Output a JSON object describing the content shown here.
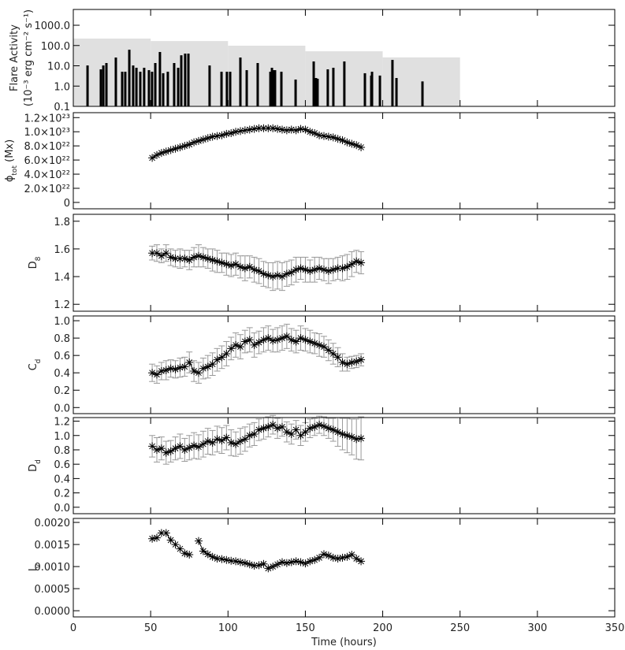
{
  "chart_data": [
    {
      "type": "flare",
      "log_y": true,
      "ylabel": [
        [
          {
            "text": "Flare Activity"
          }
        ],
        [
          {
            "text": "(10⁻³ erg cm⁻² s⁻¹)"
          }
        ]
      ],
      "xlim": [
        0,
        350
      ],
      "xticks": [
        0,
        50,
        100,
        150,
        200,
        250,
        300,
        350
      ],
      "ylim": [
        0.1,
        6000
      ],
      "yticks": [
        0.1,
        {
          "value": 1,
          "label": "1.0"
        },
        {
          "value": 10,
          "label": "10.0"
        },
        {
          "value": 100,
          "label": "100.0"
        },
        {
          "value": 1000,
          "label": "1000.0"
        }
      ],
      "background": {
        "bins": [
          0,
          50,
          100,
          150,
          200,
          250
        ],
        "values": [
          220,
          166,
          98,
          52,
          26
        ],
        "color": "#e0e0e0"
      },
      "color": "#000000",
      "x": [
        9.2,
        17.8,
        19.4,
        21.4,
        27.5,
        31.6,
        33.6,
        36.2,
        38.7,
        40.8,
        43.3,
        45.8,
        48.9,
        50.9,
        53,
        56,
        58.1,
        61.1,
        65.2,
        67.8,
        69.8,
        72.3,
        74.4,
        88.1,
        95.8,
        99.3,
        101.4,
        108,
        112.1,
        119.2,
        127.4,
        128.4,
        129.4,
        130.4,
        134.5,
        143.7,
        155.4,
        156.9,
        157.9,
        164.5,
        168.1,
        175.2,
        188.5,
        192.6,
        193.1,
        198.2,
        206.3,
        208.9,
        225.7
      ],
      "values": [
        10.4,
        6.7,
        10.4,
        13.7,
        25.6,
        5.1,
        5.1,
        62,
        10.4,
        8.0,
        5.1,
        8.0,
        6.1,
        5.1,
        13.7,
        48,
        4.3,
        5.1,
        13.7,
        8.0,
        33,
        40,
        40,
        10.4,
        5.1,
        5.1,
        5.1,
        25.6,
        6.1,
        13.7,
        5.1,
        8.0,
        6.1,
        6.1,
        5.1,
        2.1,
        16.4,
        2.5,
        2.3,
        6.7,
        8.0,
        16.4,
        4.3,
        3.3,
        5.1,
        3.3,
        19.5,
        2.5,
        1.7
      ]
    },
    {
      "type": "scatter-line",
      "ylabel": [
        [
          {
            "text": "ϕ"
          },
          {
            "text": "tot",
            "sub": true
          },
          {
            "text": " (Mx)"
          }
        ]
      ],
      "xlim": [
        0,
        350
      ],
      "xticks": [
        0,
        50,
        100,
        150,
        200,
        250,
        300,
        350
      ],
      "ylim": [
        -9e+21,
        1.27e+23
      ],
      "yticks": [
        0,
        {
          "value": 2e+22,
          "label": "2.0×10²²"
        },
        {
          "value": 4e+22,
          "label": "4.0×10²²"
        },
        {
          "value": 6e+22,
          "label": "6.0×10²²"
        },
        {
          "value": 8e+22,
          "label": "8.0×10²²"
        },
        {
          "value": 1e+23,
          "label": "1.0×10²³"
        },
        {
          "value": 1.2e+23,
          "label": "1.2×10²³"
        }
      ],
      "x": [
        51,
        54,
        57,
        60,
        63,
        66,
        69,
        72,
        75,
        78,
        81,
        84,
        87,
        90,
        93,
        96,
        99,
        102,
        105,
        108,
        111,
        114,
        117,
        120,
        123,
        126,
        129,
        132,
        135,
        138,
        141,
        144,
        147,
        150,
        153,
        156,
        159,
        162,
        165,
        168,
        171,
        174,
        177,
        180,
        183,
        186
      ],
      "series": [
        {
          "color": "#000000",
          "values": [
            6.3e+22,
            6.7e+22,
            7e+22,
            7.2e+22,
            7.4e+22,
            7.6e+22,
            7.8e+22,
            8e+22,
            8.2e+22,
            8.5e+22,
            8.7e+22,
            8.9e+22,
            9.1e+22,
            9.3e+22,
            9.4e+22,
            9.5e+22,
            9.7e+22,
            9.8e+22,
            1e+23,
            1.01e+23,
            1.02e+23,
            1.03e+23,
            1.04e+23,
            1.05e+23,
            1.05e+23,
            1.05e+23,
            1.05e+23,
            1.04e+23,
            1.03e+23,
            1.02e+23,
            1.03e+23,
            1.02e+23,
            1.04e+23,
            1.03e+23,
            1e+23,
            9.8e+22,
            9.5e+22,
            9.4e+22,
            9.3e+22,
            9.2e+22,
            9e+22,
            8.8e+22,
            8.5e+22,
            8.3e+22,
            8.1e+22,
            7.8e+22
          ]
        }
      ]
    },
    {
      "type": "scatter-line",
      "ylabel": [
        [
          {
            "text": "D"
          },
          {
            "text": "8",
            "sub": true
          }
        ]
      ],
      "xlim": [
        0,
        350
      ],
      "xticks": [
        0,
        50,
        100,
        150,
        200,
        250,
        300,
        350
      ],
      "ylim": [
        1.15,
        1.85
      ],
      "yticks": [
        1.2,
        1.4,
        1.6,
        1.8
      ],
      "x": [
        51,
        54,
        57,
        60,
        63,
        66,
        69,
        72,
        75,
        78,
        81,
        84,
        87,
        90,
        93,
        96,
        99,
        102,
        105,
        108,
        111,
        114,
        117,
        120,
        123,
        126,
        129,
        132,
        135,
        138,
        141,
        144,
        147,
        150,
        153,
        156,
        159,
        162,
        165,
        168,
        171,
        174,
        177,
        180,
        183,
        186
      ],
      "series": [
        {
          "color": "#000000",
          "error_color": "#999999",
          "values": [
            1.57,
            1.57,
            1.55,
            1.57,
            1.54,
            1.53,
            1.53,
            1.53,
            1.52,
            1.54,
            1.55,
            1.54,
            1.53,
            1.52,
            1.51,
            1.5,
            1.49,
            1.48,
            1.49,
            1.47,
            1.46,
            1.47,
            1.45,
            1.44,
            1.42,
            1.41,
            1.4,
            1.41,
            1.4,
            1.42,
            1.43,
            1.45,
            1.46,
            1.45,
            1.44,
            1.45,
            1.46,
            1.45,
            1.44,
            1.45,
            1.46,
            1.46,
            1.47,
            1.49,
            1.51,
            1.5
          ],
          "errors": [
            0.05,
            0.06,
            0.05,
            0.06,
            0.06,
            0.06,
            0.07,
            0.06,
            0.07,
            0.07,
            0.08,
            0.07,
            0.07,
            0.08,
            0.08,
            0.07,
            0.08,
            0.08,
            0.08,
            0.08,
            0.09,
            0.08,
            0.09,
            0.09,
            0.09,
            0.09,
            0.1,
            0.1,
            0.1,
            0.09,
            0.09,
            0.09,
            0.08,
            0.09,
            0.08,
            0.09,
            0.08,
            0.08,
            0.09,
            0.08,
            0.08,
            0.09,
            0.09,
            0.09,
            0.08,
            0.08
          ]
        }
      ]
    },
    {
      "type": "scatter-line",
      "ylabel": [
        [
          {
            "text": "C"
          },
          {
            "text": "d",
            "sub": true
          }
        ]
      ],
      "xlim": [
        0,
        350
      ],
      "xticks": [
        0,
        50,
        100,
        150,
        200,
        250,
        300,
        350
      ],
      "ylim": [
        -0.07,
        1.055
      ],
      "yticks": [
        {
          "value": 0,
          "label": "0.0"
        },
        0.2,
        0.4,
        0.6,
        0.8,
        {
          "value": 1,
          "label": "1.0"
        }
      ],
      "x": [
        51,
        54,
        57,
        60,
        63,
        66,
        69,
        72,
        75,
        78,
        81,
        84,
        87,
        90,
        93,
        96,
        99,
        102,
        105,
        108,
        111,
        114,
        117,
        120,
        123,
        126,
        129,
        132,
        135,
        138,
        141,
        144,
        147,
        150,
        153,
        156,
        159,
        162,
        165,
        168,
        171,
        174,
        177,
        180,
        183,
        186
      ],
      "series": [
        {
          "color": "#000000",
          "error_color": "#999999",
          "values": [
            0.4,
            0.38,
            0.42,
            0.43,
            0.45,
            0.44,
            0.46,
            0.47,
            0.52,
            0.42,
            0.4,
            0.45,
            0.47,
            0.5,
            0.55,
            0.58,
            0.62,
            0.68,
            0.72,
            0.7,
            0.76,
            0.78,
            0.72,
            0.75,
            0.78,
            0.8,
            0.77,
            0.78,
            0.8,
            0.82,
            0.78,
            0.76,
            0.8,
            0.78,
            0.76,
            0.74,
            0.72,
            0.7,
            0.66,
            0.62,
            0.58,
            0.52,
            0.5,
            0.52,
            0.53,
            0.55
          ],
          "errors": [
            0.1,
            0.1,
            0.1,
            0.11,
            0.1,
            0.1,
            0.11,
            0.11,
            0.12,
            0.12,
            0.12,
            0.12,
            0.13,
            0.13,
            0.13,
            0.13,
            0.14,
            0.13,
            0.14,
            0.14,
            0.13,
            0.14,
            0.14,
            0.13,
            0.14,
            0.14,
            0.13,
            0.14,
            0.14,
            0.14,
            0.13,
            0.13,
            0.14,
            0.13,
            0.13,
            0.12,
            0.13,
            0.12,
            0.12,
            0.12,
            0.11,
            0.1,
            0.08,
            0.07,
            0.07,
            0.07
          ]
        }
      ]
    },
    {
      "type": "scatter-line",
      "ylabel": [
        [
          {
            "text": "D"
          },
          {
            "text": "d",
            "sub": true
          }
        ]
      ],
      "xlim": [
        0,
        350
      ],
      "xticks": [
        0,
        50,
        100,
        150,
        200,
        250,
        300,
        350
      ],
      "ylim": [
        -0.09,
        1.25
      ],
      "yticks": [
        {
          "value": 0,
          "label": "0.0"
        },
        0.2,
        0.4,
        0.6,
        0.8,
        {
          "value": 1,
          "label": "1.0"
        },
        1.2
      ],
      "x": [
        51,
        54,
        57,
        60,
        63,
        66,
        69,
        72,
        75,
        78,
        81,
        84,
        87,
        90,
        93,
        96,
        99,
        102,
        105,
        108,
        111,
        114,
        117,
        120,
        123,
        126,
        129,
        132,
        135,
        138,
        141,
        144,
        147,
        150,
        153,
        156,
        159,
        162,
        165,
        168,
        171,
        174,
        177,
        180,
        183,
        186
      ],
      "series": [
        {
          "color": "#000000",
          "error_color": "#999999",
          "values": [
            0.85,
            0.8,
            0.82,
            0.76,
            0.78,
            0.82,
            0.85,
            0.8,
            0.83,
            0.86,
            0.84,
            0.88,
            0.92,
            0.9,
            0.95,
            0.93,
            0.97,
            0.9,
            0.88,
            0.92,
            0.95,
            1.0,
            1.02,
            1.08,
            1.1,
            1.12,
            1.15,
            1.1,
            1.12,
            1.05,
            1.02,
            1.08,
            1.0,
            1.05,
            1.1,
            1.12,
            1.15,
            1.13,
            1.1,
            1.08,
            1.05,
            1.02,
            1.0,
            0.98,
            0.95,
            0.96
          ],
          "errors": [
            0.15,
            0.17,
            0.16,
            0.16,
            0.15,
            0.16,
            0.17,
            0.16,
            0.17,
            0.18,
            0.17,
            0.18,
            0.18,
            0.17,
            0.18,
            0.18,
            0.17,
            0.18,
            0.17,
            0.18,
            0.17,
            0.16,
            0.16,
            0.15,
            0.15,
            0.14,
            0.13,
            0.14,
            0.13,
            0.14,
            0.14,
            0.13,
            0.14,
            0.13,
            0.13,
            0.12,
            0.12,
            0.13,
            0.14,
            0.16,
            0.2,
            0.22,
            0.24,
            0.25,
            0.28,
            0.3
          ]
        }
      ]
    },
    {
      "type": "scatter-line",
      "ylabel": [
        [
          {
            "text": "I"
          },
          {
            "text": "v",
            "sub": true
          }
        ]
      ],
      "xlabel": "Time (hours)",
      "xtick_labels": true,
      "xlim": [
        0,
        350
      ],
      "xticks": [
        0,
        50,
        100,
        150,
        200,
        250,
        300,
        350
      ],
      "ylim": [
        -0.00014,
        0.00209
      ],
      "yticks": [
        {
          "value": 0,
          "label": "0.0000"
        },
        0.0005,
        {
          "value": 0.001,
          "label": "0.0010"
        },
        0.0015,
        {
          "value": 0.002,
          "label": "0.0020"
        }
      ],
      "x": [
        51,
        54,
        57,
        60,
        63,
        66,
        69,
        72,
        75,
        78,
        81,
        84,
        87,
        90,
        93,
        96,
        99,
        102,
        105,
        108,
        111,
        114,
        117,
        120,
        123,
        126,
        129,
        132,
        135,
        138,
        141,
        144,
        147,
        150,
        153,
        156,
        159,
        162,
        165,
        168,
        171,
        174,
        177,
        180,
        183,
        186
      ],
      "series": [
        {
          "color": "#000000",
          "values": [
            0.00163,
            0.00165,
            0.00176,
            0.00176,
            0.0016,
            0.0015,
            0.0014,
            0.0013,
            0.00127,
            null,
            0.00158,
            0.00135,
            0.00128,
            0.00122,
            0.00118,
            0.00117,
            0.00115,
            0.00113,
            0.00112,
            0.0011,
            0.00108,
            0.00105,
            0.00102,
            0.00103,
            0.00106,
            0.00096,
            0.001,
            0.00105,
            0.0011,
            0.00108,
            0.0011,
            0.00112,
            0.0011,
            0.00107,
            0.00112,
            0.00115,
            0.0012,
            0.00128,
            0.00125,
            0.0012,
            0.00118,
            0.0012,
            0.00122,
            0.00127,
            0.00118,
            0.00112
          ]
        }
      ]
    }
  ]
}
